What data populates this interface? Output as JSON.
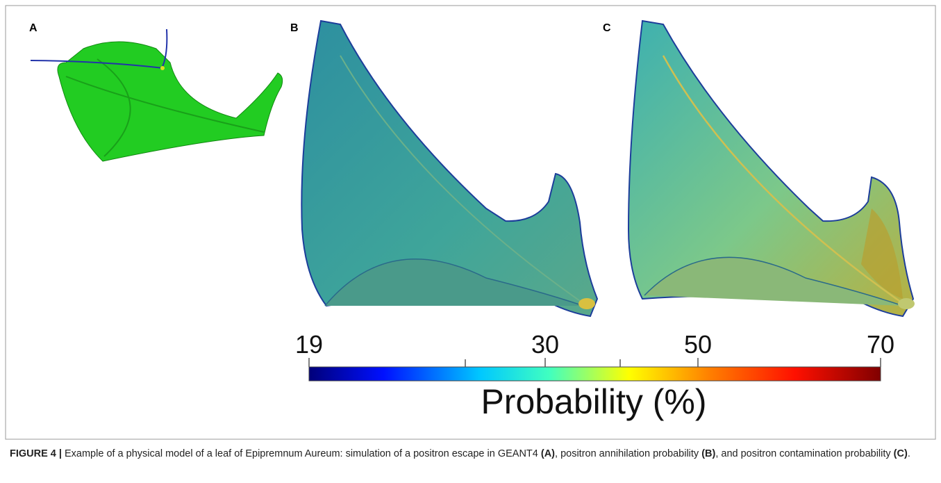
{
  "panels": [
    {
      "label": "A"
    },
    {
      "label": "B"
    },
    {
      "label": "C"
    }
  ],
  "colorbar": {
    "ticks": [
      19,
      30,
      50,
      70
    ],
    "label": "Probability (%)"
  },
  "caption": {
    "figure": "FIGURE 4 |",
    "parts": [
      {
        "text": " Example of a physical model of a leaf of Epipremnum Aureum: simulation of a positron escape in GEANT4 ",
        "bold": false
      },
      {
        "text": "(A)",
        "bold": true
      },
      {
        "text": ", positron annihilation probability ",
        "bold": false
      },
      {
        "text": "(B)",
        "bold": true
      },
      {
        "text": ", and positron contamination probability ",
        "bold": false
      },
      {
        "text": "(C)",
        "bold": true
      },
      {
        "text": ".",
        "bold": false
      }
    ]
  }
}
